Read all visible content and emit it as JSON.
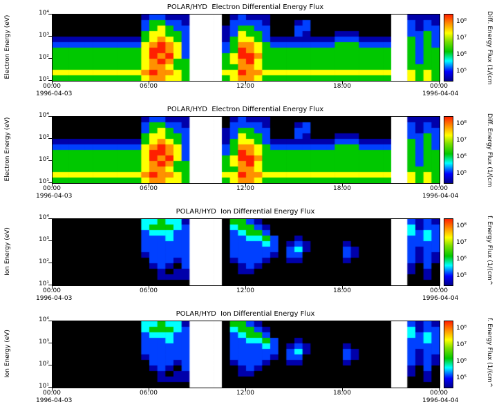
{
  "page": {
    "background": "#ffffff"
  },
  "chart_data": {
    "type": "heatmap",
    "panels": [
      {
        "title": "POLAR/HYD  Electron Differential Energy Flux",
        "ylabel": "Electron Energy (eV)",
        "grid": "electron",
        "colorbar_label": "Diff. Energy Flux (1/(cm",
        "date_left": "1996-04-03",
        "date_right": "1996-04-04"
      },
      {
        "title": "POLAR/HYD  Electron Differential Energy Flux",
        "ylabel": "Electron Energy (eV)",
        "grid": "electron",
        "colorbar_label": "Diff. Energy Flux (1/(cm",
        "date_left": "1996-04-03",
        "date_right": "1996-04-04"
      },
      {
        "title": "POLAR/HYD  Ion Differential Energy Flux",
        "ylabel": "Ion Energy (eV)",
        "grid": "ion",
        "colorbar_label": "f. Energy Flux (1/(cm^",
        "date_left": "1996-04-03",
        "date_right": "1996-04-04"
      },
      {
        "title": "POLAR/HYD  Ion Differential Energy Flux",
        "ylabel": "Ion Energy (eV)",
        "grid": "ion",
        "colorbar_label": "f. Energy Flux (1/(cm^",
        "date_left": "1996-04-03",
        "date_right": "1996-04-04"
      }
    ],
    "x_tick_labels": [
      "00:00",
      "06:00",
      "12:00",
      "18:00",
      "00:00"
    ],
    "x_axis_hours": [
      0,
      24
    ],
    "time_bin_hours": 0.5,
    "n_time_bins": 48,
    "y_tick_labels": [
      "10⁴",
      "10³",
      "10²",
      "10¹"
    ],
    "energy_range_ev": [
      10,
      10000
    ],
    "energy_scale": "log",
    "n_energy_bins": 12,
    "energy_rows_top_to_bottom": true,
    "colorbar_tick_labels": [
      "10⁸",
      "10⁷",
      "10⁶",
      "10⁵"
    ],
    "flux_tick_values": [
      100000000,
      10000000,
      1000000,
      100000
    ],
    "data_gap_hours": [
      [
        8.5,
        10.5
      ],
      [
        21,
        22
      ]
    ],
    "value_to_log10_flux": {
      "0": null,
      "1": 5.0,
      "2": 5.4,
      "3": 6.1,
      "4": 6.6,
      "5": 7.3,
      "6": 7.8,
      "7": 8.3,
      "9": null
    },
    "palette": {
      "0": "#000000",
      "1": "#0000aa",
      "2": "#0040ff",
      "3": "#00ffff",
      "4": "#00c800",
      "5": "#ffff00",
      "6": "#ff9100",
      "7": "#ff2000",
      "9": "#ffffff"
    },
    "colorbar_stops": [
      {
        "pos": 0,
        "color": "#00008b"
      },
      {
        "pos": 14,
        "color": "#0000ff"
      },
      {
        "pos": 30,
        "color": "#00ffff"
      },
      {
        "pos": 44,
        "color": "#00c800"
      },
      {
        "pos": 60,
        "color": "#80e000"
      },
      {
        "pos": 72,
        "color": "#ffff00"
      },
      {
        "pos": 86,
        "color": "#ff9100"
      },
      {
        "pos": 100,
        "color": "#ff2000"
      }
    ],
    "grids": {
      "electron": [
        [
          "00000000000",
          "122111",
          "9999",
          "0",
          "12111",
          "000000000000000",
          "99",
          "1111"
        ],
        [
          "00000000000",
          "244221",
          "9999",
          "0",
          "22221",
          "000120000000000",
          "99",
          "2121"
        ],
        [
          "00000000000",
          "245422",
          "9999",
          "1",
          "24422",
          "000220000000000",
          "99",
          "2122"
        ],
        [
          "00000000000",
          "455442",
          "9999",
          "1",
          "25442",
          "000210001110000",
          "99",
          "2242"
        ],
        [
          "11111111111",
          "456542",
          "9999",
          "1",
          "45542",
          "111111112221111",
          "99",
          "4242"
        ],
        [
          "22222222222",
          "567652",
          "9999",
          "2",
          "46654",
          "222222224442222",
          "99",
          "4242"
        ],
        [
          "44444444444",
          "577652",
          "9999",
          "2",
          "47654",
          "444444444444444",
          "99",
          "4244"
        ],
        [
          "44444444444",
          "576752",
          "9999",
          "4",
          "57764",
          "444444444444444",
          "99",
          "4244"
        ],
        [
          "44444444444",
          "567644",
          "9999",
          "4",
          "56754",
          "444444444444444",
          "99",
          "4244"
        ],
        [
          "44444444444",
          "566544",
          "9999",
          "4",
          "46654",
          "444444444444444",
          "99",
          "4444"
        ],
        [
          "55555555555",
          "676654",
          "9999",
          "5",
          "57665",
          "555555555555555",
          "99",
          "5454"
        ],
        [
          "44444444444",
          "566554",
          "9999",
          "4",
          "56654",
          "444444444444444",
          "99",
          "5454"
        ]
      ],
      "ion": [
        [
          "00000000000",
          "334331",
          "9999",
          "0",
          "44210",
          "000000000000000",
          "99",
          "2121"
        ],
        [
          "00000000000",
          "344432",
          "9999",
          "0",
          "34421",
          "000000000000000",
          "99",
          "3122"
        ],
        [
          "00000000000",
          "233322",
          "9999",
          "0",
          "23442",
          "000000000000000",
          "99",
          "3232"
        ],
        [
          "00000000000",
          "222322",
          "9999",
          "0",
          "22334",
          "200100000000000",
          "99",
          "2232"
        ],
        [
          "00000000000",
          "222222",
          "9999",
          "0",
          "22223",
          "201210000100000",
          "99",
          "2222"
        ],
        [
          "00000000000",
          "222222",
          "9999",
          "0",
          "22222",
          "202310000210000",
          "99",
          "2122"
        ],
        [
          "00000000000",
          "122222",
          "9999",
          "0",
          "22222",
          "102200000210000",
          "99",
          "2121"
        ],
        [
          "00000000000",
          "022212",
          "9999",
          "0",
          "12221",
          "001100000100000",
          "99",
          "2121"
        ],
        [
          "00000000000",
          "012102",
          "9999",
          "0",
          "01210",
          "000000000000000",
          "99",
          "1020"
        ],
        [
          "00000000000",
          "001011",
          "9999",
          "0",
          "01100",
          "000000000000000",
          "99",
          "1010"
        ],
        [
          "00000000000",
          "001111",
          "9999",
          "0",
          "00000",
          "000000000000000",
          "99",
          "0010"
        ],
        [
          "00000000000",
          "000000",
          "9999",
          "0",
          "00000",
          "000000000000000",
          "99",
          "0000"
        ]
      ]
    }
  }
}
